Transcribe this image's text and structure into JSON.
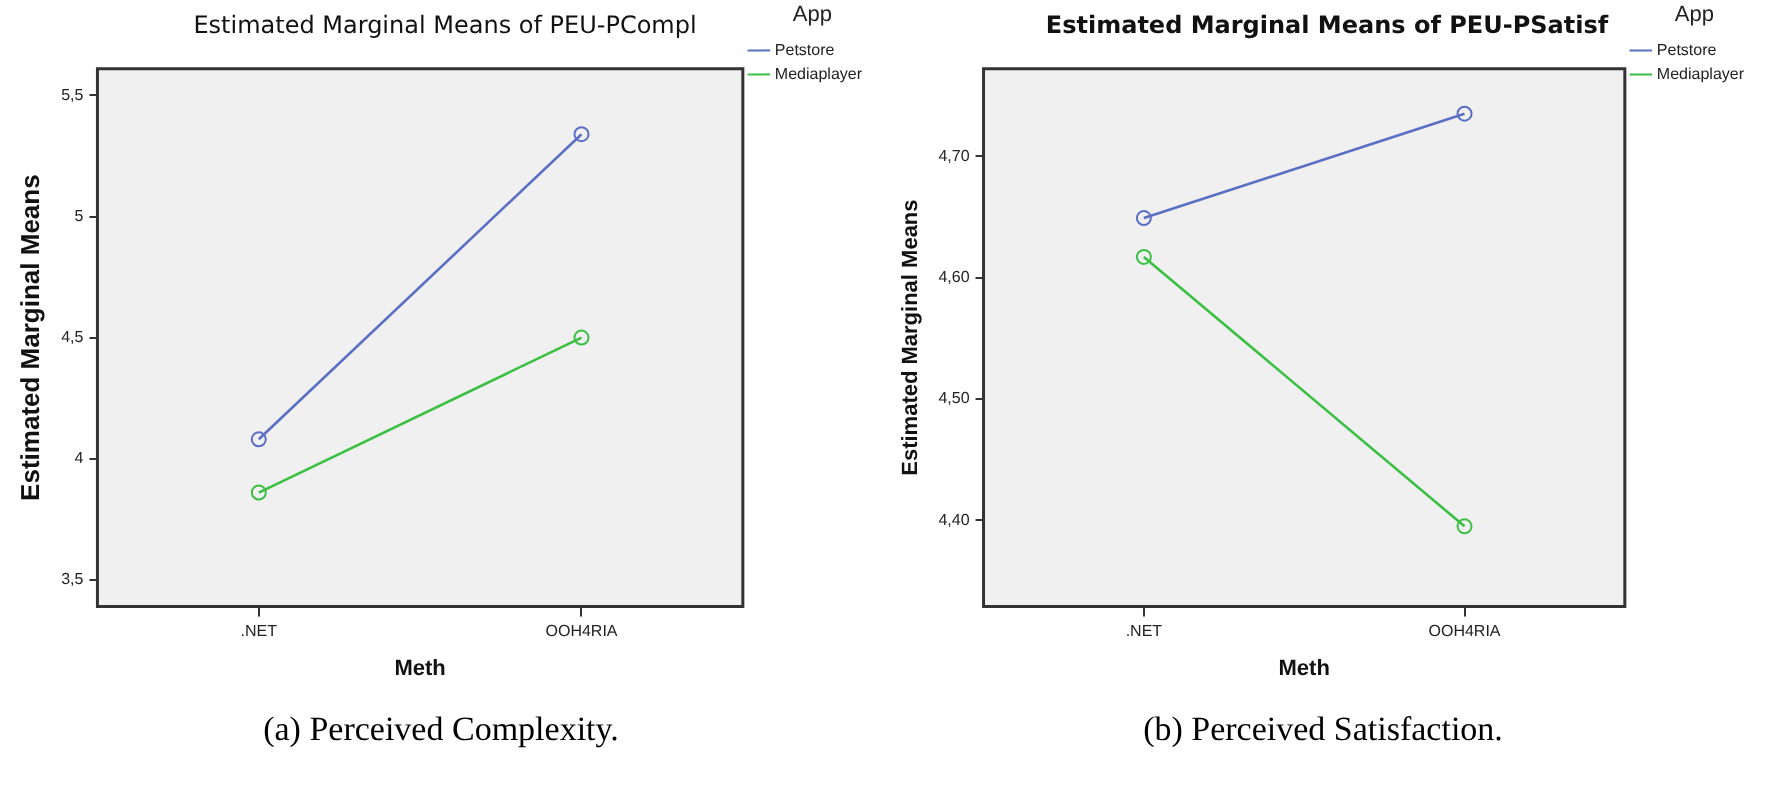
{
  "chart_data": [
    {
      "type": "line",
      "title": "Estimated Marginal Means of PEU-PCompl",
      "xlabel": "Meth",
      "ylabel": "Estimated Marginal Means",
      "legend_title": "App",
      "categories": [
        ".NET",
        "OOH4RIA"
      ],
      "series": [
        {
          "name": "Petstore",
          "color": "#5b6fc4",
          "values": [
            4.08,
            5.34
          ]
        },
        {
          "name": "Mediaplayer",
          "color": "#3cc043",
          "values": [
            3.86,
            4.5
          ]
        }
      ],
      "ylim": [
        3.39,
        5.61
      ],
      "yticks": [
        {
          "value": 3.5,
          "label": "3,5"
        },
        {
          "value": 4,
          "label": "4"
        },
        {
          "value": 4.5,
          "label": "4,5"
        },
        {
          "value": 5,
          "label": "5"
        },
        {
          "value": 5.5,
          "label": "5,5"
        }
      ],
      "grid": false,
      "legend": "top right",
      "marker": "circle",
      "line_style": "solid",
      "annotations": [
        "(a)  Perceived Complexity."
      ]
    },
    {
      "type": "line",
      "title": "Estimated Marginal Means of PEU-PSatisf",
      "xlabel": "Meth",
      "ylabel": "Estimated Marginal Means",
      "legend_title": "App",
      "categories": [
        ".NET",
        "OOH4RIA"
      ],
      "series": [
        {
          "name": "Petstore",
          "color": "#5b6fc4",
          "values": [
            4.649,
            4.735
          ]
        },
        {
          "name": "Mediaplayer",
          "color": "#3cc043",
          "values": [
            4.617,
            4.395
          ]
        }
      ],
      "ylim": [
        4.329,
        4.772
      ],
      "yticks": [
        {
          "value": 4.4,
          "label": "4,40"
        },
        {
          "value": 4.5,
          "label": "4,50"
        },
        {
          "value": 4.6,
          "label": "4,60"
        },
        {
          "value": 4.7,
          "label": "4,70"
        }
      ],
      "grid": false,
      "legend": "top right",
      "marker": "circle",
      "line_style": "solid",
      "annotations": [
        "(b)  Perceived Satisfaction."
      ]
    }
  ]
}
